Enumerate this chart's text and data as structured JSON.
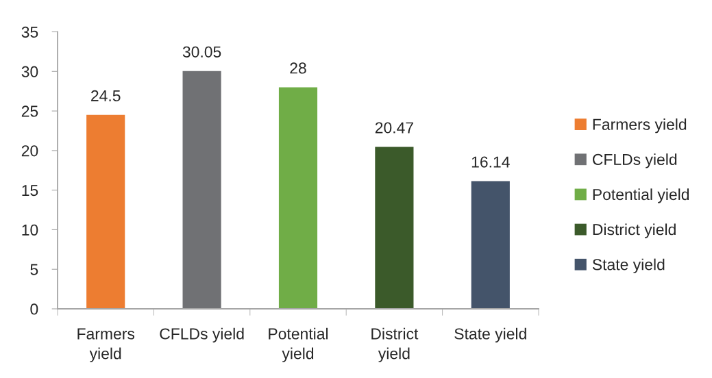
{
  "chart_data": {
    "type": "bar",
    "categories": [
      "Farmers yield",
      "CFLDs yield",
      "Potential yield",
      "District yield",
      "State yield"
    ],
    "series": [
      {
        "name": "Farmers yield",
        "color": "#ed7d31",
        "values": [
          24.5,
          null,
          null,
          null,
          null
        ]
      },
      {
        "name": "CFLDs yield",
        "color": "#707174",
        "values": [
          null,
          30.05,
          null,
          null,
          null
        ]
      },
      {
        "name": "Potential yield",
        "color": "#70ad47",
        "values": [
          null,
          null,
          28,
          null,
          null
        ]
      },
      {
        "name": "District yield",
        "color": "#3b5a2a",
        "values": [
          null,
          null,
          null,
          20.47,
          null
        ]
      },
      {
        "name": "State yield",
        "color": "#44546a",
        "values": [
          null,
          null,
          null,
          null,
          16.14
        ]
      }
    ],
    "ylim": [
      0,
      35
    ],
    "yticks": [
      0,
      5,
      10,
      15,
      20,
      25,
      30,
      35
    ],
    "data_labels": true,
    "grid": false,
    "legend": "right"
  }
}
